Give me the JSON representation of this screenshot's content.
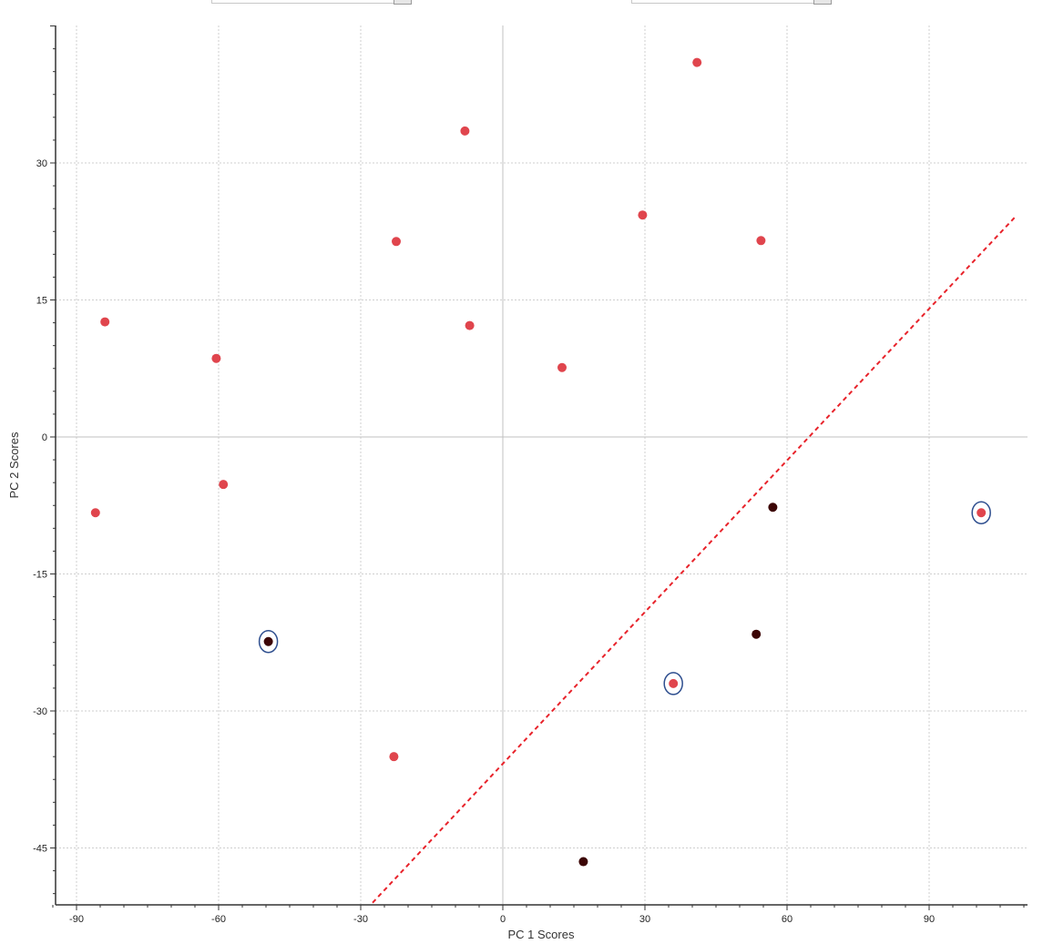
{
  "colors": {
    "series_main": "#e0454d",
    "series_dark": "#3c0505",
    "highlight_ring": "#2f4f8f",
    "divider_line": "#e8232b",
    "grid": "#cfcfcf",
    "zero_line": "#c0c0c0",
    "axis": "#333333"
  },
  "chart_data": {
    "type": "scatter",
    "title": "",
    "xlabel": "PC 1 Scores",
    "ylabel": "PC 2 Scores",
    "xlim": [
      -95,
      110
    ],
    "ylim": [
      -51,
      45
    ],
    "x_ticks": [
      -90,
      -60,
      -30,
      0,
      30,
      60,
      90
    ],
    "y_ticks": [
      30,
      15,
      0,
      -15,
      -30,
      -45
    ],
    "grid": true,
    "legend": "none",
    "series": [
      {
        "color_key": "series_main",
        "points": [
          {
            "x": 41,
            "y": 41
          },
          {
            "x": -8,
            "y": 33.5
          },
          {
            "x": 29.5,
            "y": 24.3
          },
          {
            "x": -22.5,
            "y": 21.4
          },
          {
            "x": 54.5,
            "y": 21.5
          },
          {
            "x": -84,
            "y": 12.6
          },
          {
            "x": -7,
            "y": 12.2
          },
          {
            "x": -60.5,
            "y": 8.6
          },
          {
            "x": 12.5,
            "y": 7.6
          },
          {
            "x": -59,
            "y": -5.2
          },
          {
            "x": -86,
            "y": -8.3
          },
          {
            "x": 101,
            "y": -8.3,
            "highlighted": true
          },
          {
            "x": 36,
            "y": -27,
            "highlighted": true
          },
          {
            "x": -23,
            "y": -35
          }
        ]
      },
      {
        "color_key": "series_dark",
        "points": [
          {
            "x": 57,
            "y": -7.7
          },
          {
            "x": -49.5,
            "y": -22.4,
            "highlighted": true
          },
          {
            "x": 53.5,
            "y": -21.6
          },
          {
            "x": 17,
            "y": -46.5
          }
        ]
      }
    ],
    "annotations": [
      {
        "kind": "dashed-line",
        "from": {
          "x": -27.5,
          "y": -51
        },
        "to": {
          "x": 108,
          "y": 24
        }
      }
    ]
  }
}
